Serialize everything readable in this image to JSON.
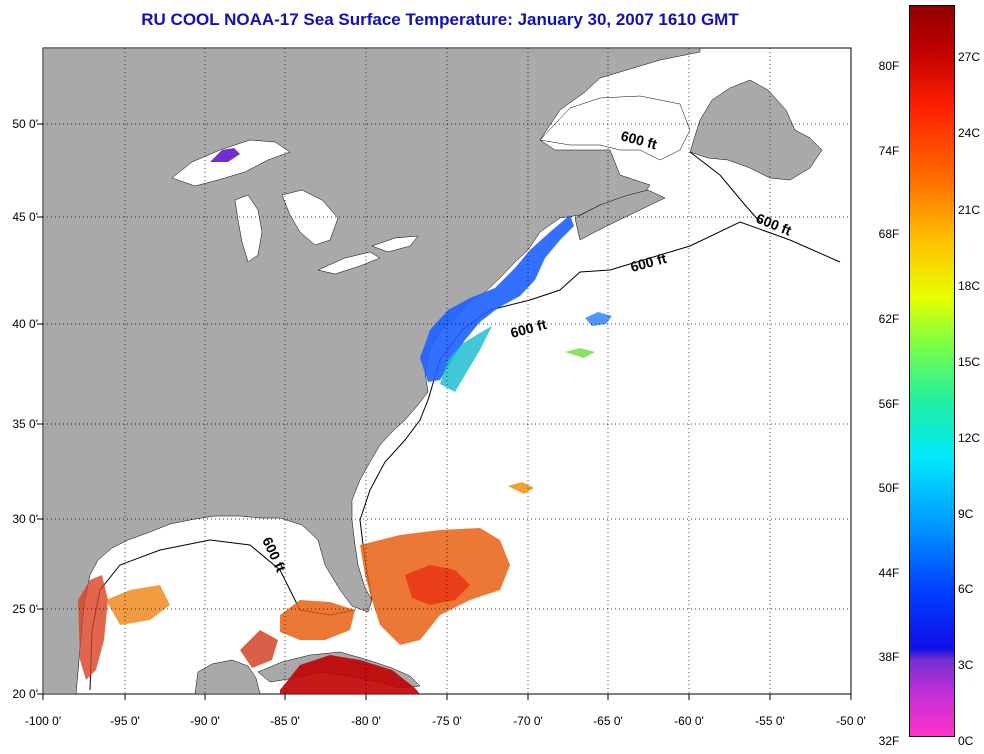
{
  "title": "RU COOL  NOAA-17  Sea Surface Temperature:  January 30, 2007 1610 GMT",
  "lat_ticks": [
    "50 0'",
    "45 0'",
    "40 0'",
    "35 0'",
    "30 0'",
    "25 0'",
    "20 0'"
  ],
  "lon_ticks": [
    "-100 0'",
    "-95 0'",
    "-90 0'",
    "-85 0'",
    "-80 0'",
    "-75 0'",
    "-70 0'",
    "-65 0'",
    "-60 0'",
    "-55 0'",
    "-50 0'"
  ],
  "isobath_label": "600 ft",
  "colorbar": {
    "fahrenheit": [
      "80F",
      "74F",
      "68F",
      "62F",
      "56F",
      "50F",
      "44F",
      "38F",
      "32F"
    ],
    "celsius": [
      "27C",
      "24C",
      "21C",
      "18C",
      "15C",
      "12C",
      "9C",
      "6C",
      "3C",
      "0C"
    ]
  },
  "colors": {
    "land": "#a9a9a9",
    "ocean": "#ffffff",
    "title": "#1010b8",
    "cold": "#1e60ff",
    "warm": "#e83010",
    "hot": "#c00000"
  }
}
